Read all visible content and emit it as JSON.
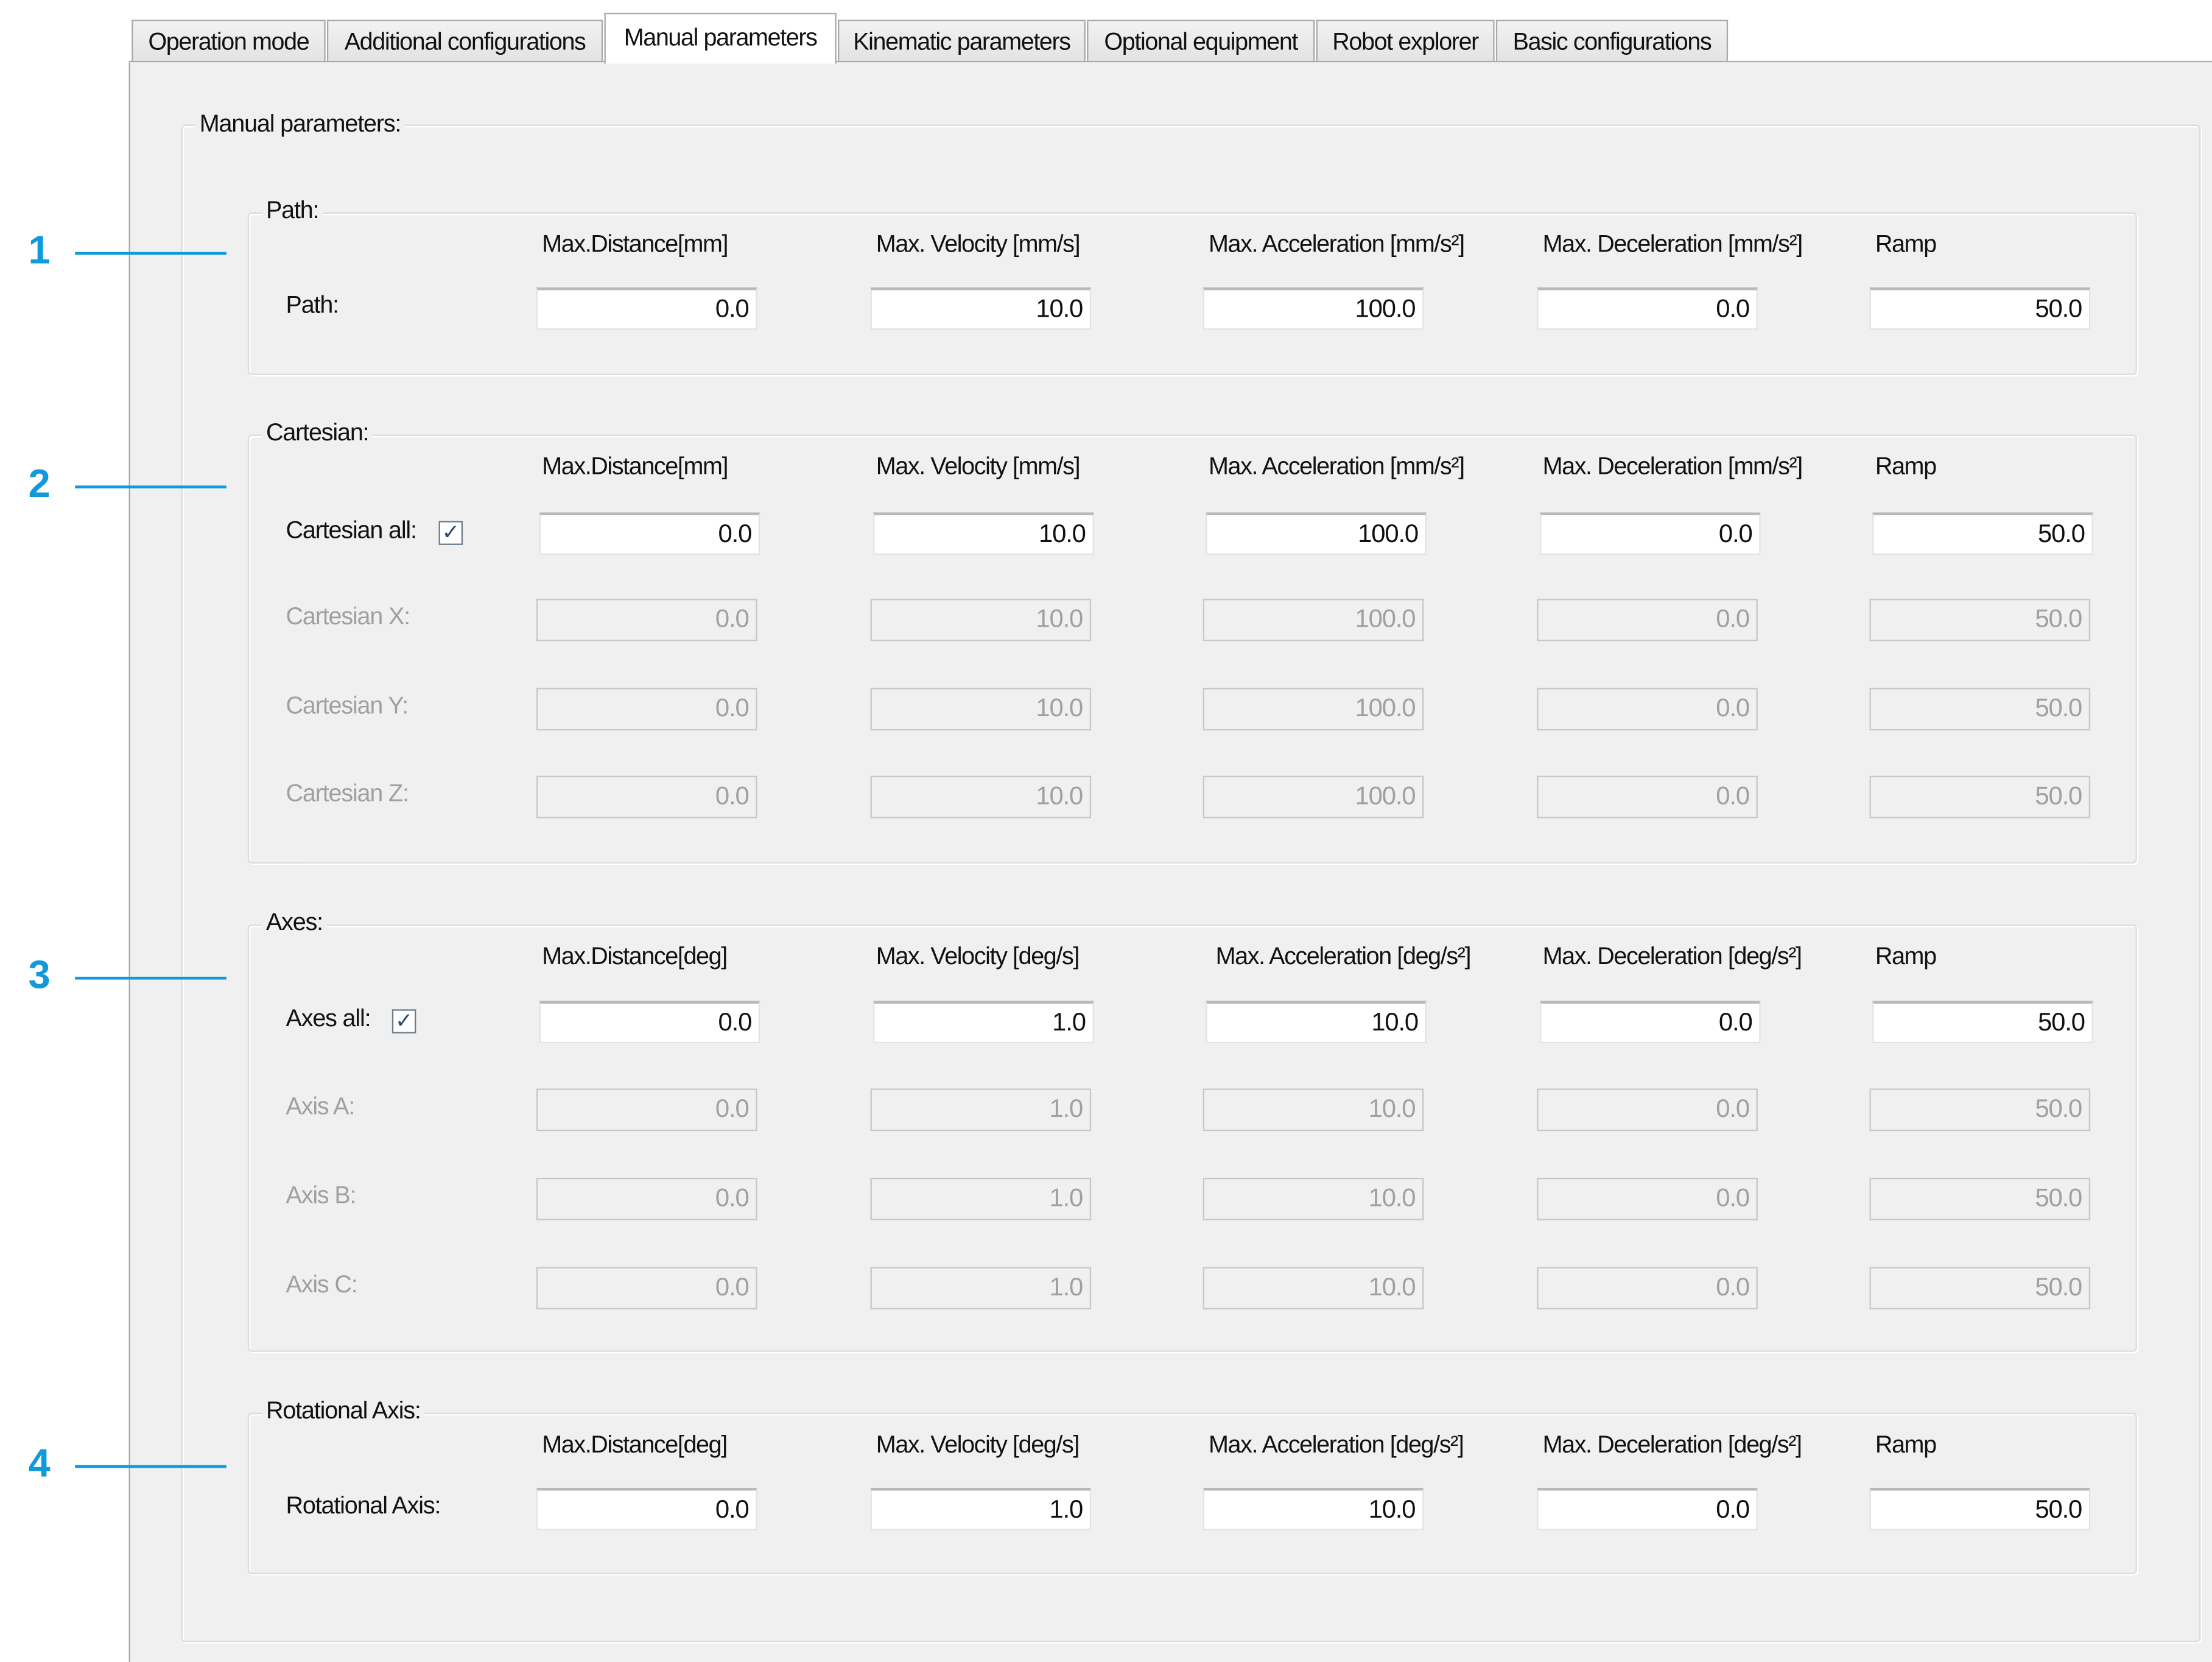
{
  "tabs": [
    {
      "label": "Operation mode",
      "active": false
    },
    {
      "label": "Additional configurations",
      "active": false
    },
    {
      "label": "Manual parameters",
      "active": true
    },
    {
      "label": "Kinematic parameters",
      "active": false
    },
    {
      "label": "Optional equipment",
      "active": false
    },
    {
      "label": "Robot explorer",
      "active": false
    },
    {
      "label": "Basic configurations",
      "active": false
    }
  ],
  "panel_title": "Manual parameters:",
  "annotation_color": "#109ad9",
  "annotations": [
    "1",
    "2",
    "3",
    "4"
  ],
  "groups": [
    {
      "title": "Path:",
      "columns": [
        "Max.Distance[mm]",
        "Max. Velocity [mm/s]",
        "Max. Acceleration [mm/s²]",
        "Max. Deceleration [mm/s²]",
        "Ramp"
      ],
      "rows": [
        {
          "label": "Path:",
          "enabled": true,
          "values": [
            "0.0",
            "10.0",
            "100.0",
            "0.0",
            "50.0"
          ]
        }
      ]
    },
    {
      "title": "Cartesian:",
      "columns": [
        "Max.Distance[mm]",
        "Max. Velocity [mm/s]",
        "Max. Acceleration [mm/s²]",
        "Max. Deceleration [mm/s²]",
        "Ramp"
      ],
      "rows": [
        {
          "label": "Cartesian all:",
          "enabled": true,
          "checkbox": true,
          "checked": true,
          "values": [
            "0.0",
            "10.0",
            "100.0",
            "0.0",
            "50.0"
          ]
        },
        {
          "label": "Cartesian X:",
          "enabled": false,
          "values": [
            "0.0",
            "10.0",
            "100.0",
            "0.0",
            "50.0"
          ]
        },
        {
          "label": "Cartesian Y:",
          "enabled": false,
          "values": [
            "0.0",
            "10.0",
            "100.0",
            "0.0",
            "50.0"
          ]
        },
        {
          "label": "Cartesian Z:",
          "enabled": false,
          "values": [
            "0.0",
            "10.0",
            "100.0",
            "0.0",
            "50.0"
          ]
        }
      ]
    },
    {
      "title": "Axes:",
      "columns": [
        "Max.Distance[deg]",
        "Max. Velocity [deg/s]",
        "Max. Acceleration [deg/s²]",
        "Max. Deceleration [deg/s²]",
        "Ramp"
      ],
      "rows": [
        {
          "label": "Axes all:",
          "enabled": true,
          "checkbox": true,
          "checked": true,
          "values": [
            "0.0",
            "1.0",
            "10.0",
            "0.0",
            "50.0"
          ]
        },
        {
          "label": "Axis A:",
          "enabled": false,
          "values": [
            "0.0",
            "1.0",
            "10.0",
            "0.0",
            "50.0"
          ]
        },
        {
          "label": "Axis B:",
          "enabled": false,
          "values": [
            "0.0",
            "1.0",
            "10.0",
            "0.0",
            "50.0"
          ]
        },
        {
          "label": "Axis C:",
          "enabled": false,
          "values": [
            "0.0",
            "1.0",
            "10.0",
            "0.0",
            "50.0"
          ]
        }
      ]
    },
    {
      "title": "Rotational Axis:",
      "columns": [
        "Max.Distance[deg]",
        "Max. Velocity [deg/s]",
        "Max. Acceleration [deg/s²]",
        "Max. Deceleration [deg/s²]",
        "Ramp"
      ],
      "rows": [
        {
          "label": "Rotational Axis:",
          "enabled": true,
          "values": [
            "0.0",
            "1.0",
            "10.0",
            "0.0",
            "50.0"
          ]
        }
      ]
    }
  ]
}
